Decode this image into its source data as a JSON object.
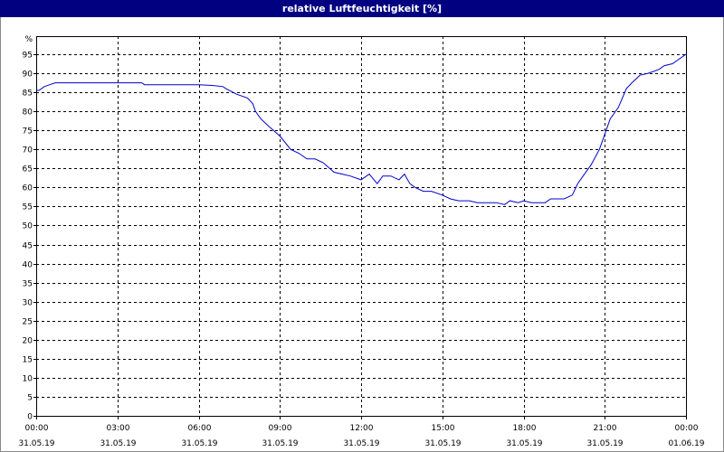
{
  "chart_data": {
    "type": "line",
    "title": "relative Luftfeuchtigkeit [%]",
    "y_unit_label": "%",
    "ylim": [
      0,
      95
    ],
    "yticks": [
      0,
      5,
      10,
      15,
      20,
      25,
      30,
      35,
      40,
      45,
      50,
      55,
      60,
      65,
      70,
      75,
      80,
      85,
      90,
      95
    ],
    "xlim_hours": [
      0,
      24
    ],
    "xticks": [
      {
        "time": "00:00",
        "date": "31.05.19"
      },
      {
        "time": "03:00",
        "date": "31.05.19"
      },
      {
        "time": "06:00",
        "date": "31.05.19"
      },
      {
        "time": "09:00",
        "date": "31.05.19"
      },
      {
        "time": "12:00",
        "date": "31.05.19"
      },
      {
        "time": "15:00",
        "date": "31.05.19"
      },
      {
        "time": "18:00",
        "date": "31.05.19"
      },
      {
        "time": "21:00",
        "date": "31.05.19"
      },
      {
        "time": "00:00",
        "date": "01.06.19"
      }
    ],
    "grid": true,
    "series": [
      {
        "color": "#0000cc",
        "x": [
          0,
          0.1,
          0.3,
          0.5,
          0.7,
          1.0,
          2.0,
          3.0,
          3.5,
          3.9,
          4.0,
          5.0,
          6.0,
          6.5,
          6.9,
          7.0,
          7.4,
          7.8,
          8.0,
          8.1,
          8.3,
          8.6,
          9.0,
          9.4,
          9.7,
          10.0,
          10.3,
          10.6,
          11.0,
          11.3,
          11.6,
          12.0,
          12.3,
          12.6,
          12.8,
          13.1,
          13.4,
          13.6,
          13.8,
          14.0,
          14.3,
          14.6,
          15.0,
          15.3,
          15.6,
          16.0,
          16.3,
          16.6,
          17.0,
          17.3,
          17.5,
          17.8,
          18.0,
          18.3,
          18.6,
          18.8,
          19.0,
          19.2,
          19.5,
          19.8,
          20.0,
          20.2,
          20.5,
          20.8,
          21.0,
          21.2,
          21.5,
          21.8,
          22.0,
          22.3,
          22.6,
          23.0,
          23.2,
          23.5,
          24.0
        ],
        "y": [
          85.5,
          85.5,
          86.5,
          87,
          87.5,
          87.5,
          87.5,
          87.5,
          87.5,
          87.5,
          87,
          87,
          87,
          86.8,
          86.5,
          86,
          84.5,
          83.5,
          82,
          80,
          78,
          76,
          73.5,
          70,
          69,
          67.5,
          67.5,
          66.5,
          64,
          63.5,
          63,
          62,
          63.5,
          61,
          63,
          63,
          62,
          63.5,
          61,
          60,
          59,
          59,
          58,
          57,
          56.5,
          56.5,
          56,
          56,
          56,
          55.5,
          56.5,
          56,
          56.5,
          56,
          56,
          56,
          57,
          57,
          57,
          58,
          61,
          63,
          66,
          70,
          74,
          78,
          81,
          86,
          87.5,
          89.5,
          90,
          91,
          92,
          92.5,
          95
        ]
      }
    ]
  }
}
